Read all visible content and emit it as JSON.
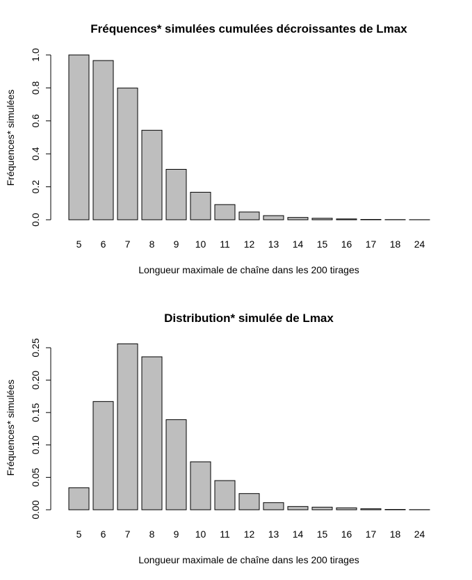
{
  "chart_data": [
    {
      "type": "bar",
      "title": "Fréquences* simulées cumulées décroissantes de Lmax",
      "xlabel": "Longueur maximale de chaîne dans les  200 tirages",
      "ylabel": "Fréquences* simulées",
      "categories": [
        "5",
        "6",
        "7",
        "8",
        "9",
        "10",
        "11",
        "12",
        "13",
        "14",
        "15",
        "16",
        "17",
        "18",
        "24"
      ],
      "values": [
        1.0,
        0.966,
        0.799,
        0.543,
        0.306,
        0.167,
        0.092,
        0.047,
        0.025,
        0.014,
        0.009,
        0.005,
        0.002,
        0.001,
        0.0005
      ],
      "ylim": [
        0,
        1.0
      ],
      "yticks": [
        0.0,
        0.2,
        0.4,
        0.6,
        0.8,
        1.0
      ],
      "ytick_labels": [
        "0.0",
        "0.2",
        "0.4",
        "0.6",
        "0.8",
        "1.0"
      ],
      "grid": false,
      "bar_color": "#bebebe"
    },
    {
      "type": "bar",
      "title": "Distribution* simulée de Lmax",
      "xlabel": "Longueur maximale de chaîne dans les  200 tirages",
      "ylabel": "Fréquences* simulées",
      "categories": [
        "5",
        "6",
        "7",
        "8",
        "9",
        "10",
        "11",
        "12",
        "13",
        "14",
        "15",
        "16",
        "17",
        "18",
        "24"
      ],
      "values": [
        0.034,
        0.167,
        0.256,
        0.236,
        0.139,
        0.074,
        0.045,
        0.025,
        0.011,
        0.005,
        0.004,
        0.003,
        0.0015,
        0.0005,
        0.0002
      ],
      "ylim": [
        0,
        0.25
      ],
      "yticks": [
        0.0,
        0.05,
        0.1,
        0.15,
        0.2,
        0.25
      ],
      "ytick_labels": [
        "0.00",
        "0.05",
        "0.10",
        "0.15",
        "0.20",
        "0.25"
      ],
      "grid": false,
      "bar_color": "#bebebe"
    }
  ]
}
